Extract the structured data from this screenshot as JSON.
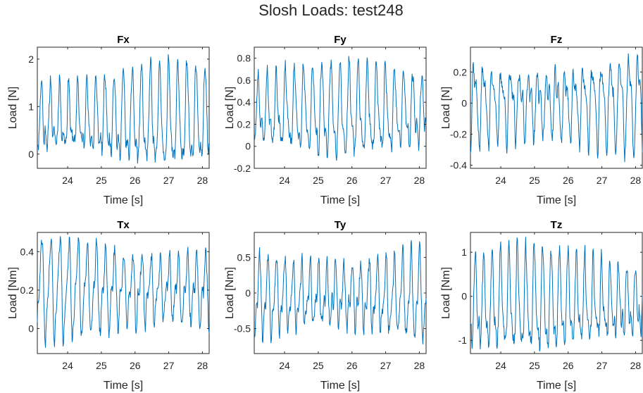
{
  "figure": {
    "title": "Slosh Loads: test248",
    "series_color": "#0072BD"
  },
  "chart_data": [
    {
      "type": "line",
      "title": "Fx",
      "xlabel": "Time [s]",
      "ylabel": "Load [N]",
      "xlim": [
        23.1,
        28.2
      ],
      "ylim": [
        -0.3,
        2.25
      ],
      "xticks": [
        24,
        25,
        26,
        27,
        28
      ],
      "yticks": [
        0,
        1,
        2
      ],
      "signal": {
        "min": -0.2,
        "max": 2.1,
        "period_s": 0.27,
        "seed": 11
      },
      "grid": false,
      "legend": "none"
    },
    {
      "type": "line",
      "title": "Fy",
      "xlabel": "Time [s]",
      "ylabel": "Load [N]",
      "xlim": [
        23.1,
        28.2
      ],
      "ylim": [
        -0.2,
        0.9
      ],
      "xticks": [
        24,
        25,
        26,
        27,
        28
      ],
      "yticks": [
        -0.2,
        0,
        0.2,
        0.4,
        0.6,
        0.8
      ],
      "signal": {
        "min": -0.13,
        "max": 0.82,
        "period_s": 0.27,
        "seed": 23
      },
      "grid": false,
      "legend": "none"
    },
    {
      "type": "line",
      "title": "Fz",
      "xlabel": "Time [s]",
      "ylabel": "Load [N]",
      "xlim": [
        23.1,
        28.2
      ],
      "ylim": [
        -0.42,
        0.36
      ],
      "xticks": [
        24,
        25,
        26,
        27,
        28
      ],
      "yticks": [
        -0.4,
        -0.2,
        0,
        0.2
      ],
      "signal": {
        "min": -0.38,
        "max": 0.32,
        "period_s": 0.27,
        "seed": 37
      },
      "grid": false,
      "legend": "none"
    },
    {
      "type": "line",
      "title": "Tx",
      "xlabel": "Time [s]",
      "ylabel": "Load [Nm]",
      "xlim": [
        23.1,
        28.2
      ],
      "ylim": [
        -0.13,
        0.5
      ],
      "xticks": [
        24,
        25,
        26,
        27,
        28
      ],
      "yticks": [
        0,
        0.2,
        0.4
      ],
      "signal": {
        "min": -0.1,
        "max": 0.48,
        "period_s": 0.27,
        "seed": 41
      },
      "grid": false,
      "legend": "none"
    },
    {
      "type": "line",
      "title": "Ty",
      "xlabel": "Time [s]",
      "ylabel": "Load [Nm]",
      "xlim": [
        23.1,
        28.2
      ],
      "ylim": [
        -0.85,
        0.85
      ],
      "xticks": [
        24,
        25,
        26,
        27,
        28
      ],
      "yticks": [
        -0.5,
        0,
        0.5
      ],
      "signal": {
        "min": -0.72,
        "max": 0.74,
        "period_s": 0.25,
        "seed": 53
      },
      "grid": false,
      "legend": "none"
    },
    {
      "type": "line",
      "title": "Tz",
      "xlabel": "Time [s]",
      "ylabel": "Load [Nm]",
      "xlim": [
        23.1,
        28.2
      ],
      "ylim": [
        -1.3,
        1.45
      ],
      "xticks": [
        24,
        25,
        26,
        27,
        28
      ],
      "yticks": [
        -1,
        0,
        1
      ],
      "signal": {
        "min": -1.25,
        "max": 1.35,
        "period_s": 0.25,
        "seed": 67
      },
      "grid": false,
      "legend": "none"
    }
  ]
}
